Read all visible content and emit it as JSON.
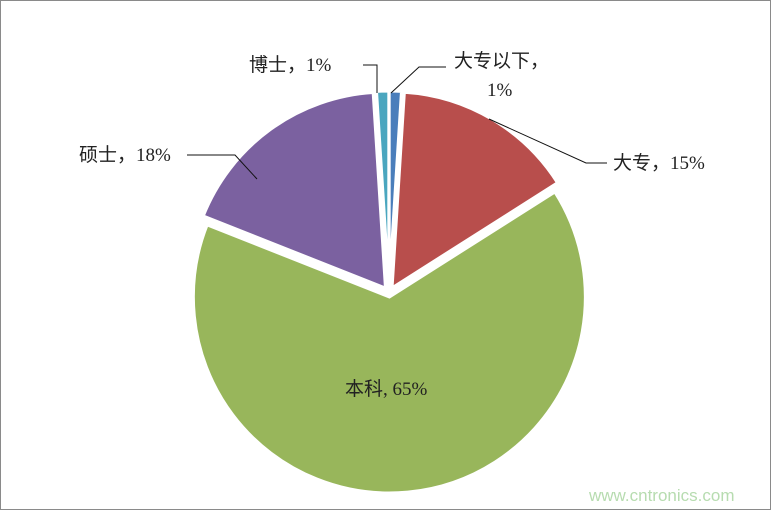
{
  "chart_data": {
    "type": "pie",
    "start_angle": "12 o'clock",
    "direction": "clockwise",
    "slices": [
      {
        "name": "大专以下",
        "value": 1,
        "label": "大专以下，",
        "label2": "1%",
        "color": "#4a7ebb"
      },
      {
        "name": "大专",
        "value": 15,
        "label": "大专，15%",
        "color": "#b84e4c"
      },
      {
        "name": "本科",
        "value": 65,
        "label": "本科, 65%",
        "color": "#98b65b"
      },
      {
        "name": "硕士",
        "value": 18,
        "label": "硕士，18%",
        "color": "#7b61a0"
      },
      {
        "name": "博士",
        "value": 1,
        "label": "博士，1%",
        "color": "#4aa6bf"
      }
    ],
    "legend": "none"
  },
  "watermark": "www.cntronics.com"
}
